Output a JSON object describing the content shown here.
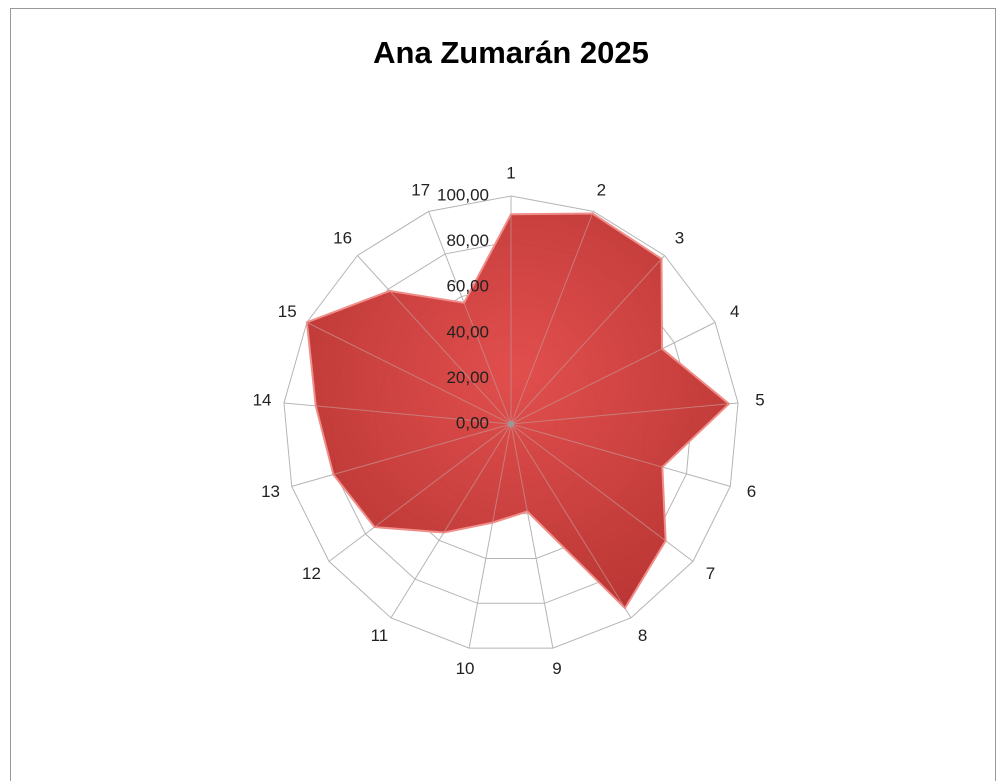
{
  "chart_data": {
    "type": "radar",
    "title": "Ana Zumarán 2025",
    "categories": [
      "1",
      "2",
      "3",
      "4",
      "5",
      "6",
      "7",
      "8",
      "9",
      "10",
      "11",
      "12",
      "13",
      "14",
      "15",
      "16",
      "17"
    ],
    "values": [
      92,
      99,
      98,
      74,
      96,
      69,
      85,
      95,
      39,
      44,
      56,
      75,
      81,
      86,
      100,
      79,
      57
    ],
    "color": "#d64541",
    "ylim": [
      0,
      100
    ],
    "yticks": [
      {
        "value": 0,
        "label": "0,00"
      },
      {
        "value": 20,
        "label": "20,00"
      },
      {
        "value": 40,
        "label": "40,00"
      },
      {
        "value": 60,
        "label": "60,00"
      },
      {
        "value": 80,
        "label": "80,00"
      },
      {
        "value": 100,
        "label": "100,00"
      }
    ],
    "grid": true
  }
}
